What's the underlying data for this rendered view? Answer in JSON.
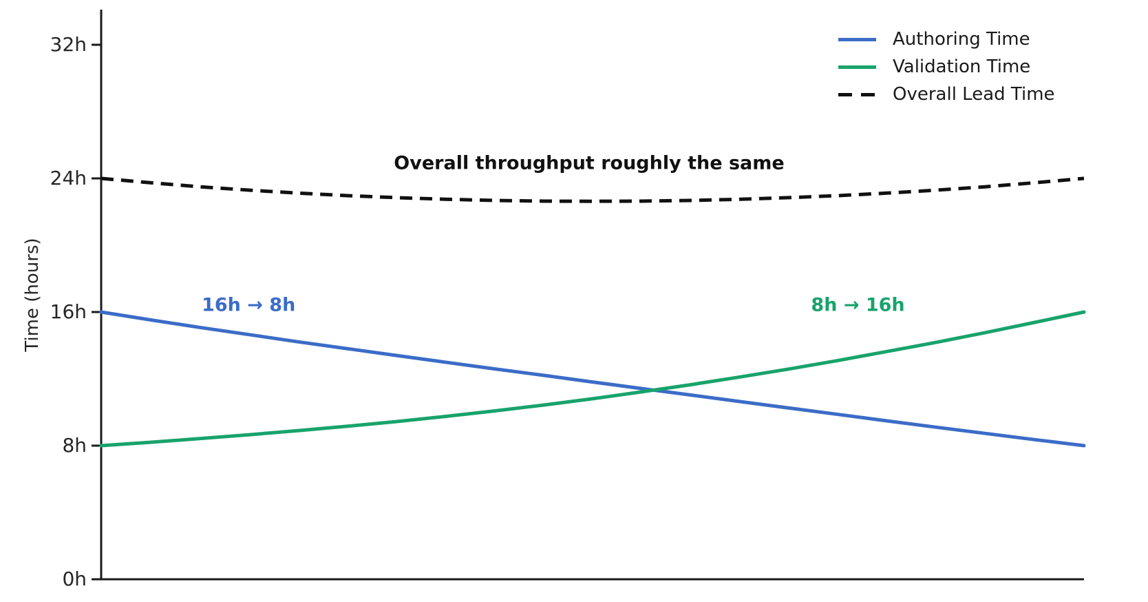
{
  "chart_data": {
    "type": "line",
    "title": "",
    "xlabel": "",
    "ylabel": "Time (hours)",
    "ylim": [
      0,
      32
    ],
    "xlim": [
      0,
      1
    ],
    "grid": false,
    "x_tick_labels_visible": false,
    "legend_position": "top-right",
    "axis_color": "#1a1a1a",
    "yticks": [
      {
        "value": 0,
        "label": "0h"
      },
      {
        "value": 8,
        "label": "8h"
      },
      {
        "value": 16,
        "label": "16h"
      },
      {
        "value": 24,
        "label": "24h"
      },
      {
        "value": 32,
        "label": "32h"
      }
    ],
    "x": [
      0,
      0.05,
      0.1,
      0.15,
      0.2,
      0.25,
      0.3,
      0.35,
      0.4,
      0.45,
      0.5,
      0.55,
      0.6,
      0.65,
      0.7,
      0.75,
      0.8,
      0.85,
      0.9,
      0.95,
      1
    ],
    "series": [
      {
        "name": "Authoring Time",
        "color": "#3b6cc7",
        "style": "solid",
        "start_value_h": 16,
        "end_value_h": 8,
        "values": [
          16.0,
          15.53,
          15.08,
          14.65,
          14.22,
          13.81,
          13.4,
          13.0,
          12.6,
          12.21,
          11.81,
          11.42,
          11.03,
          10.64,
          10.25,
          9.87,
          9.48,
          9.1,
          8.73,
          8.36,
          8.0
        ]
      },
      {
        "name": "Validation Time",
        "color": "#18a36c",
        "style": "solid",
        "start_value_h": 8,
        "end_value_h": 16,
        "values": [
          8.0,
          8.2,
          8.42,
          8.65,
          8.9,
          9.16,
          9.44,
          9.75,
          10.08,
          10.43,
          10.81,
          11.22,
          11.65,
          12.11,
          12.59,
          13.1,
          13.64,
          14.19,
          14.77,
          15.38,
          16.0
        ]
      },
      {
        "name": "Overall Lead Time",
        "color": "#111111",
        "style": "dashed",
        "start_value_h": 24,
        "end_value_h": 24,
        "values": [
          24.0,
          23.74,
          23.5,
          23.3,
          23.12,
          22.97,
          22.85,
          22.75,
          22.68,
          22.64,
          22.63,
          22.64,
          22.68,
          22.75,
          22.85,
          22.97,
          23.12,
          23.3,
          23.5,
          23.74,
          24.0
        ]
      }
    ],
    "annotations": [
      {
        "text": "Overall throughput roughly the same",
        "color": "#111111",
        "x": 0.4965,
        "y": 24.9
      },
      {
        "text": "16h → 8h",
        "color": "#3b6cc7",
        "x": 0.15,
        "y": 16.4
      },
      {
        "text": "8h → 16h",
        "color": "#18a36c",
        "x": 0.77,
        "y": 16.4
      }
    ]
  }
}
